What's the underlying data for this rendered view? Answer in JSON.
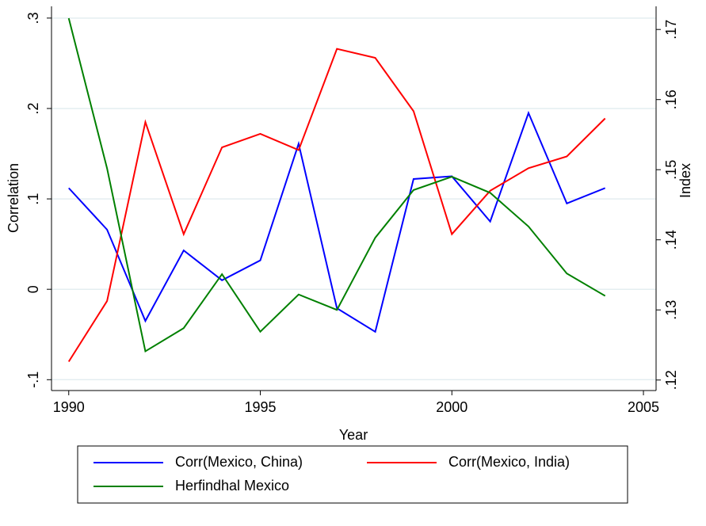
{
  "chart_data": {
    "type": "line",
    "x": [
      1990,
      1991,
      1992,
      1993,
      1994,
      1995,
      1996,
      1997,
      1998,
      1999,
      2000,
      2001,
      2002,
      2003,
      2004
    ],
    "xlabel": "Year",
    "ylabel": "Correlation",
    "y2label": "Index",
    "xlim": [
      1989.55,
      2005.33
    ],
    "xticks": [
      1990,
      1995,
      2000,
      2005
    ],
    "ylim": [
      -0.112,
      0.313
    ],
    "yticks": [
      {
        "value": -0.1,
        "label": "-.1"
      },
      0,
      {
        "value": 0.1,
        "label": ".1"
      },
      {
        "value": 0.2,
        "label": ".2"
      },
      {
        "value": 0.3,
        "label": ".3"
      }
    ],
    "y2lim": [
      0.1185,
      0.1733
    ],
    "y2ticks": [
      {
        "value": 0.12,
        "label": ".12"
      },
      {
        "value": 0.13,
        "label": ".13"
      },
      {
        "value": 0.14,
        "label": ".14"
      },
      {
        "value": 0.15,
        "label": ".15"
      },
      {
        "value": 0.16,
        "label": ".16"
      },
      {
        "value": 0.17,
        "label": ".17"
      }
    ],
    "grid": true,
    "legend": "bottom",
    "series": [
      {
        "name": "Corr(Mexico, China)",
        "color": "#0000ff",
        "values": [
          0.112,
          0.066,
          -0.035,
          0.043,
          0.01,
          0.032,
          0.161,
          -0.021,
          -0.047,
          0.122,
          0.125,
          0.075,
          0.195,
          0.095,
          0.112
        ]
      },
      {
        "name": "Corr(Mexico, India)",
        "color": "#ff0000",
        "values": [
          -0.08,
          -0.013,
          0.185,
          0.061,
          0.157,
          0.172,
          0.154,
          0.266,
          0.256,
          0.197,
          0.061,
          0.109,
          0.134,
          0.147,
          0.189
        ]
      },
      {
        "name": "Herfindhal Mexico",
        "color": "#008000",
        "axis": "y2",
        "values": [
          0.1716,
          0.1502,
          0.1241,
          0.1274,
          0.1351,
          0.1269,
          0.1322,
          0.13,
          0.1403,
          0.1471,
          0.149,
          0.1467,
          0.1419,
          0.1352,
          0.132
        ]
      }
    ]
  }
}
